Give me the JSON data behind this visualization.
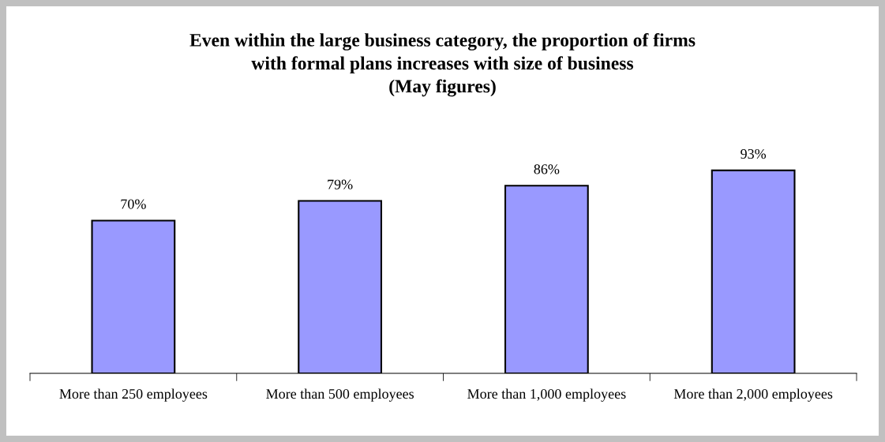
{
  "chart_data": {
    "type": "bar",
    "title": "Even within the large business category, the proportion of firms\nwith formal plans increases with size of business\n(May figures)",
    "categories": [
      "More than 250 employees",
      "More than 500 employees",
      "More than 1,000 employees",
      "More than 2,000 employees"
    ],
    "values": [
      70,
      79,
      86,
      93
    ],
    "color": "#9999ff",
    "value_labels": [
      "70%",
      "79%",
      "86%",
      "93%"
    ],
    "grid": false,
    "legend": false
  }
}
